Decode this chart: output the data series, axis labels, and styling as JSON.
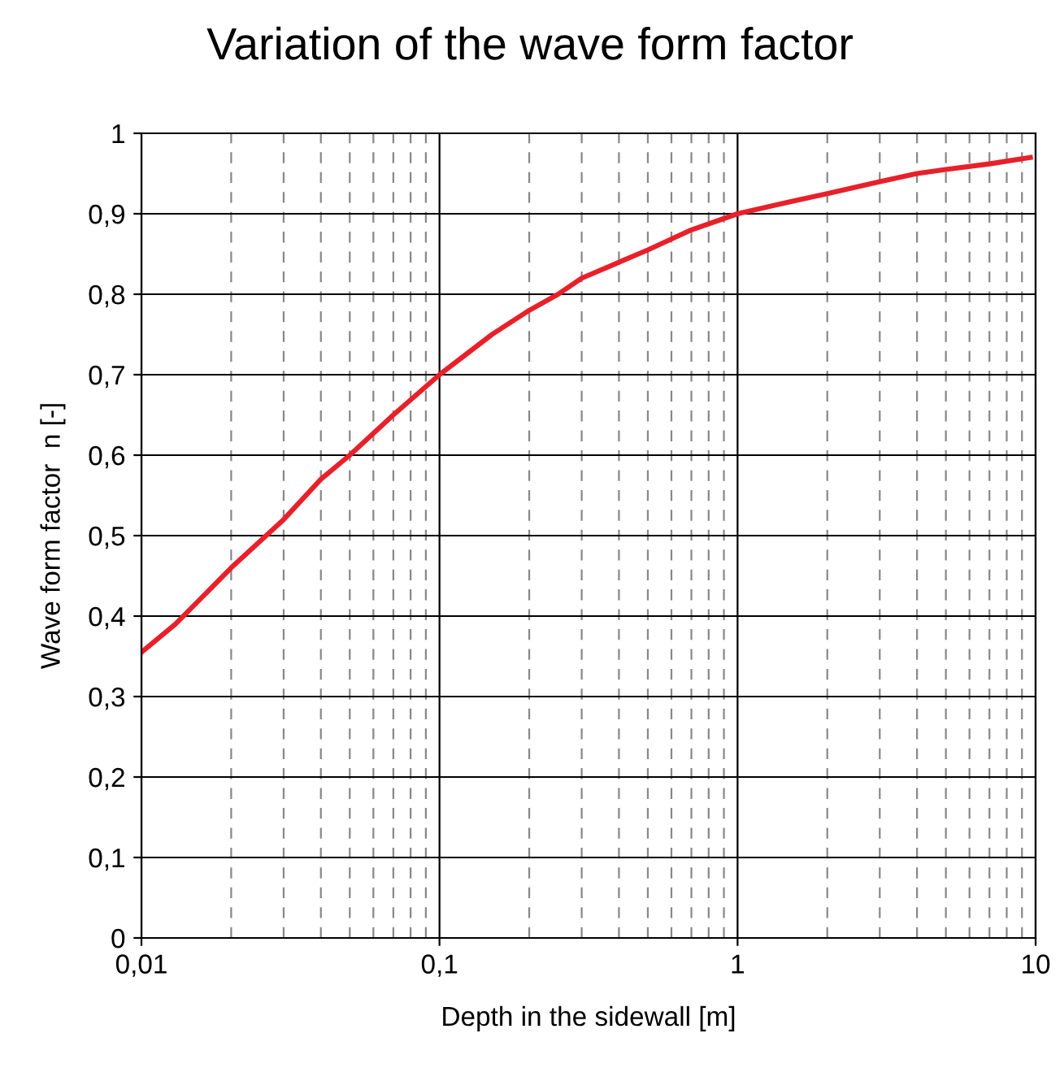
{
  "chart_data": {
    "type": "line",
    "title": "Variation of the wave form factor",
    "xlabel": "Depth in the sidewall [m]",
    "ylabel": "Wave form factor  n [-]",
    "log": "x",
    "grid": true,
    "legend": false,
    "marker": "none",
    "line_style": "solid",
    "x": [
      0.01,
      0.013,
      0.02,
      0.03,
      0.04,
      0.05,
      0.07,
      0.1,
      0.15,
      0.2,
      0.25,
      0.3,
      0.5,
      0.7,
      1,
      1.5,
      2,
      3,
      4,
      5,
      7,
      9.6
    ],
    "series": [
      {
        "color": "#e8202a",
        "values": [
          0.355,
          0.39,
          0.46,
          0.52,
          0.57,
          0.6,
          0.65,
          0.7,
          0.75,
          0.78,
          0.8,
          0.82,
          0.855,
          0.88,
          0.9,
          0.915,
          0.925,
          0.94,
          0.95,
          0.955,
          0.962,
          0.97
        ]
      }
    ],
    "xlim": [
      0.01,
      10
    ],
    "xticks": [
      {
        "value": 0.01,
        "label": "0,01"
      },
      {
        "value": 0.02,
        "label": null
      },
      {
        "value": 0.03,
        "label": null
      },
      {
        "value": 0.04,
        "label": null
      },
      {
        "value": 0.05,
        "label": null
      },
      {
        "value": 0.06,
        "label": null
      },
      {
        "value": 0.07,
        "label": null
      },
      {
        "value": 0.08,
        "label": null
      },
      {
        "value": 0.09,
        "label": null
      },
      {
        "value": 0.1,
        "label": "0,1"
      },
      {
        "value": 0.2,
        "label": null
      },
      {
        "value": 0.3,
        "label": null
      },
      {
        "value": 0.4,
        "label": null
      },
      {
        "value": 0.5,
        "label": null
      },
      {
        "value": 0.6,
        "label": null
      },
      {
        "value": 0.7,
        "label": null
      },
      {
        "value": 0.8,
        "label": null
      },
      {
        "value": 0.9,
        "label": null
      },
      {
        "value": 1,
        "label": "1"
      },
      {
        "value": 2,
        "label": null
      },
      {
        "value": 3,
        "label": null
      },
      {
        "value": 4,
        "label": null
      },
      {
        "value": 5,
        "label": null
      },
      {
        "value": 6,
        "label": null
      },
      {
        "value": 7,
        "label": null
      },
      {
        "value": 8,
        "label": null
      },
      {
        "value": 9,
        "label": null
      },
      {
        "value": 10,
        "label": "10"
      }
    ],
    "ylim": [
      0,
      1
    ],
    "yticks": [
      0,
      {
        "value": 0.1,
        "label": "0,1"
      },
      {
        "value": 0.2,
        "label": "0,2"
      },
      {
        "value": 0.3,
        "label": "0,3"
      },
      {
        "value": 0.4,
        "label": "0,4"
      },
      {
        "value": 0.5,
        "label": "0,5"
      },
      {
        "value": 0.6,
        "label": "0,6"
      },
      {
        "value": 0.7,
        "label": "0,7"
      },
      {
        "value": 0.8,
        "label": "0,8"
      },
      {
        "value": 0.9,
        "label": "0,9"
      },
      1
    ]
  }
}
